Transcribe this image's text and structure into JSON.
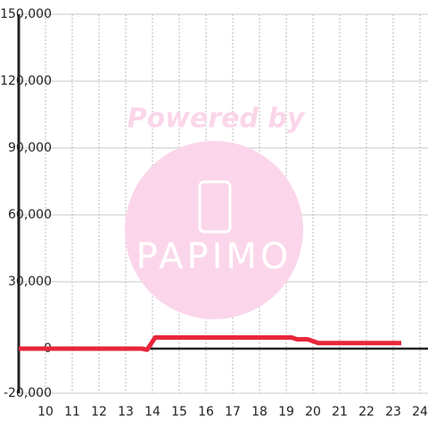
{
  "chart_data": {
    "type": "line",
    "watermark": [
      "Powered by",
      "PAPIMO"
    ],
    "x": [
      9,
      13.6,
      13.8,
      14.1,
      19.2,
      19.4,
      19.8,
      20.2,
      23.3
    ],
    "series": [
      {
        "color": "#e8263a",
        "values": [
          0,
          0,
          -500,
          5000,
          5000,
          4200,
          4200,
          2500,
          2500
        ]
      }
    ],
    "xlim": [
      9,
      24.3
    ],
    "xticks": [
      10,
      11,
      12,
      13,
      14,
      15,
      16,
      17,
      18,
      19,
      20,
      21,
      22,
      23,
      24
    ],
    "ylim": [
      -20000,
      150000
    ],
    "yticks": [
      {
        "value": -20000,
        "label": "-20,000"
      },
      0,
      {
        "value": 30000,
        "label": "30,000"
      },
      {
        "value": 60000,
        "label": "60,000"
      },
      {
        "value": 90000,
        "label": "90,000"
      },
      {
        "value": 120000,
        "label": "120,000"
      },
      {
        "value": 150000,
        "label": "150,000"
      }
    ],
    "grid": true
  }
}
